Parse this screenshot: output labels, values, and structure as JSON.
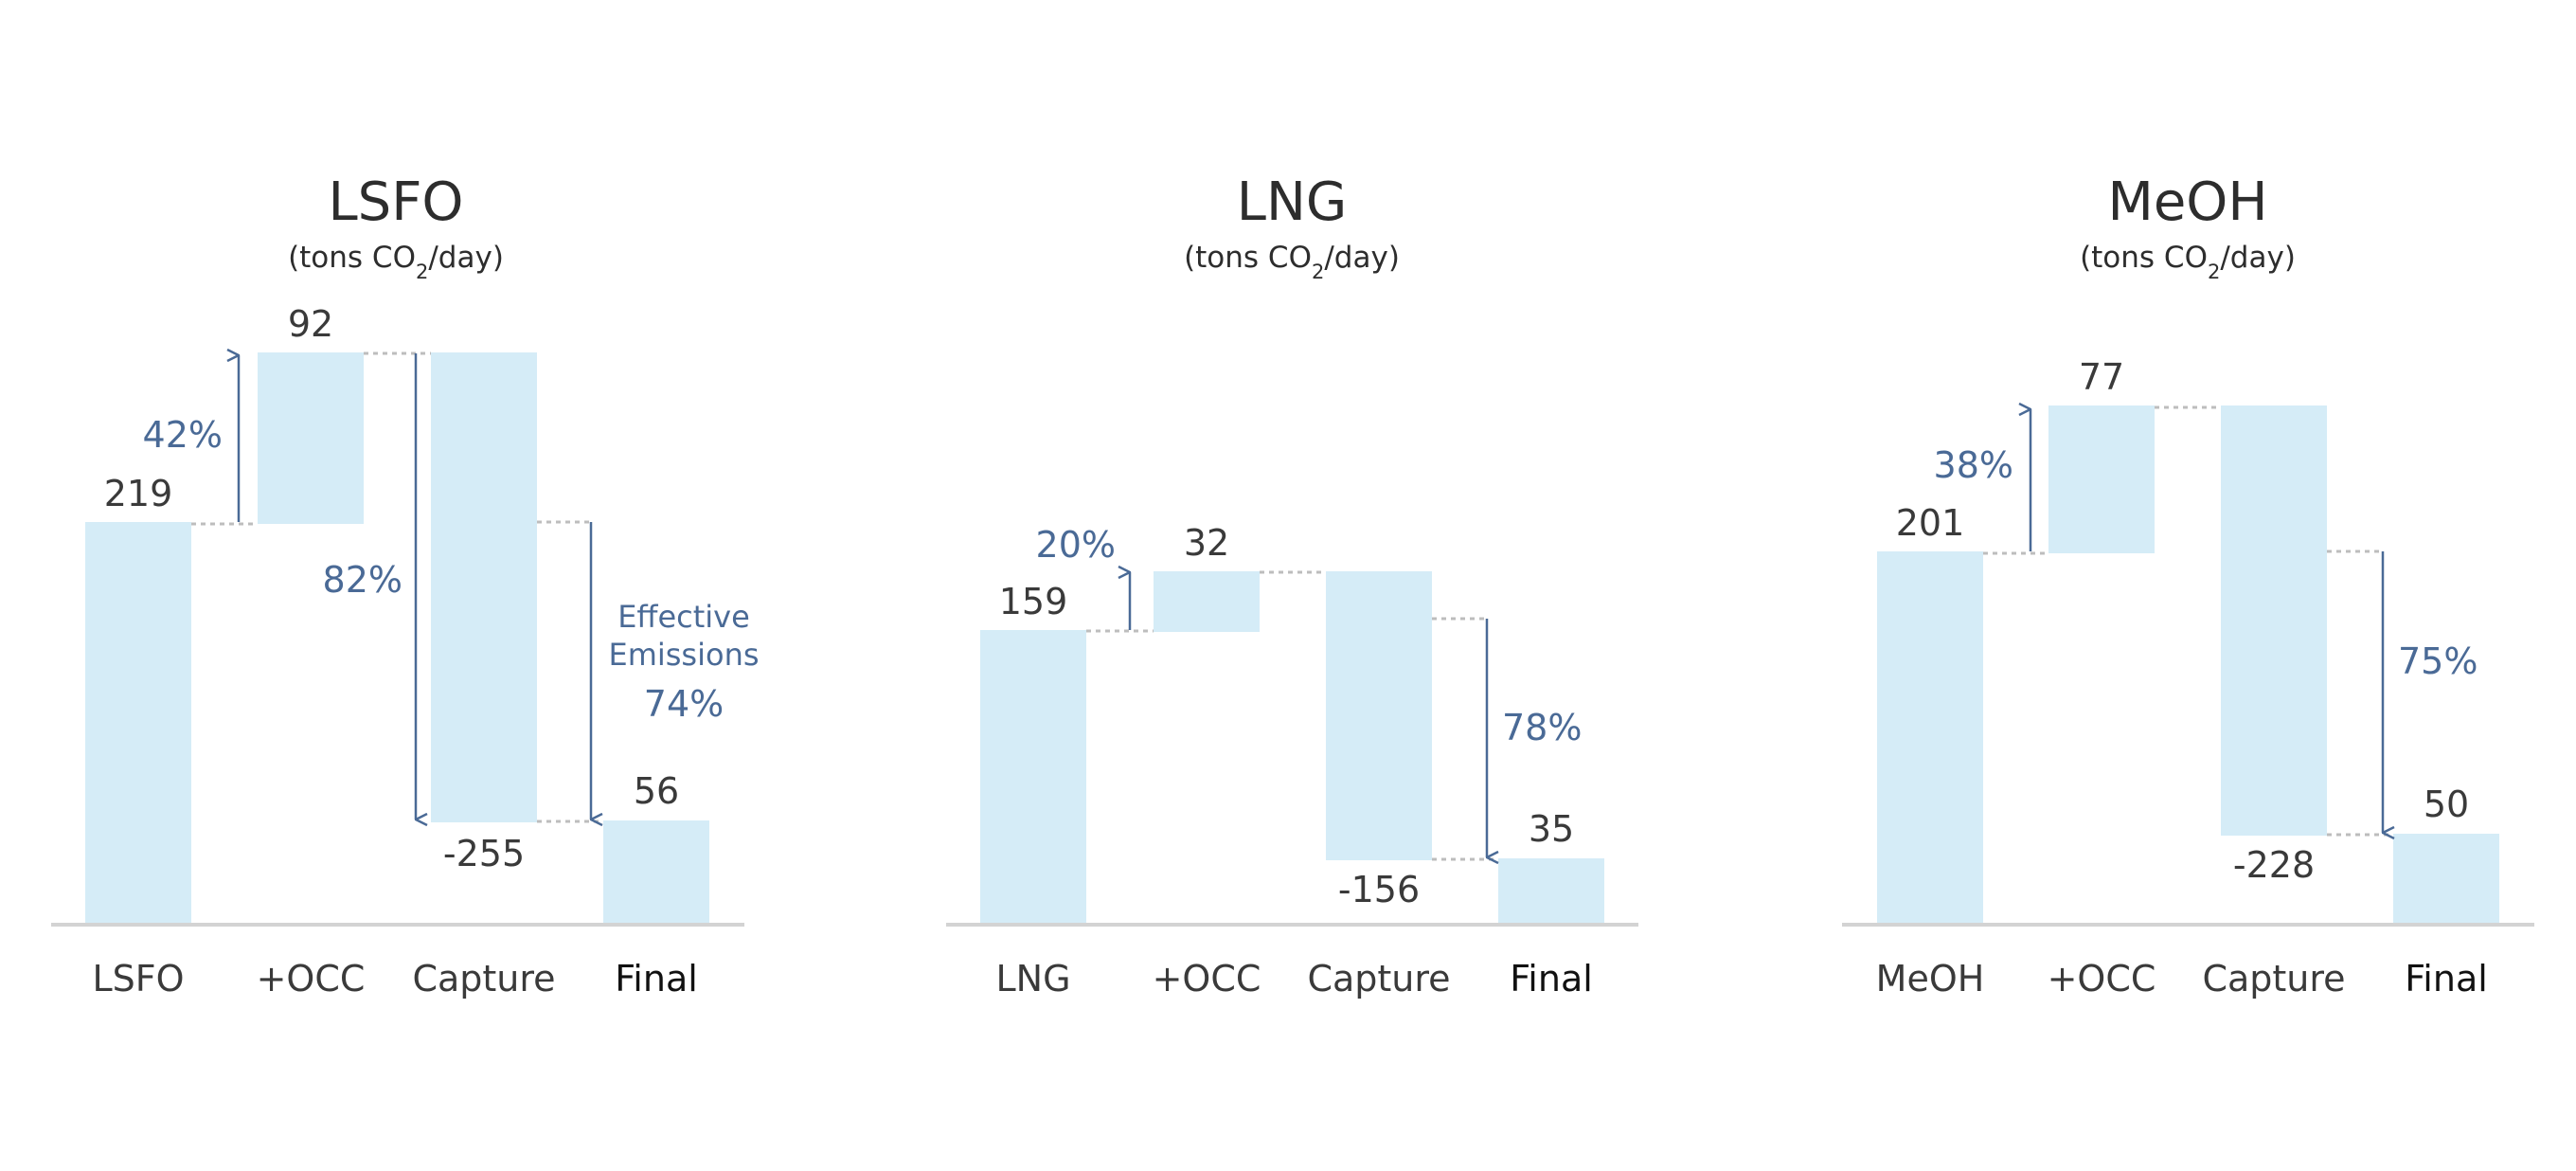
{
  "chart_data": [
    {
      "type": "waterfall",
      "title": "LSFO",
      "unit": {
        "prefix": "(tons CO",
        "sub": "2",
        "suffix": "/day)"
      },
      "categories": [
        "LSFO",
        "+OCC",
        "Capture",
        "Final"
      ],
      "values": [
        219,
        92,
        -255,
        56
      ],
      "value_labels": [
        "219",
        "92",
        "-255",
        "56"
      ],
      "annotations": [
        {
          "text": "42%",
          "from_step": 0,
          "to_step": 1
        },
        {
          "text": "82%",
          "from_step": 1,
          "to_step": 2
        },
        {
          "text": "74%",
          "note": [
            "Effective",
            "Emissions"
          ],
          "from_step": 0,
          "to_step": 2
        }
      ]
    },
    {
      "type": "waterfall",
      "title": "LNG",
      "unit": {
        "prefix": "(tons CO",
        "sub": "2",
        "suffix": "/day)"
      },
      "categories": [
        "LNG",
        "+OCC",
        "Capture",
        "Final"
      ],
      "values": [
        159,
        32,
        -156,
        35
      ],
      "value_labels": [
        "159",
        "32",
        "-156",
        "35"
      ],
      "annotations": [
        {
          "text": "20%",
          "from_step": 0,
          "to_step": 1
        },
        {
          "text": "78%",
          "from_step": 0,
          "to_step": 2
        }
      ]
    },
    {
      "type": "waterfall",
      "title": "MeOH",
      "unit": {
        "prefix": "(tons CO",
        "sub": "2",
        "suffix": "/day)"
      },
      "categories": [
        "MeOH",
        "+OCC",
        "Capture",
        "Final"
      ],
      "values": [
        201,
        77,
        -228,
        50
      ],
      "value_labels": [
        "201",
        "77",
        "-228",
        "50"
      ],
      "annotations": [
        {
          "text": "38%",
          "from_step": 0,
          "to_step": 1
        },
        {
          "text": "75%",
          "from_step": 0,
          "to_step": 2
        }
      ]
    }
  ],
  "colors": {
    "bar": "#d5ecf7",
    "annotation": "#4a6a96",
    "baseline": "#d3d3d3",
    "connector": "#bdbdbd",
    "text": "#2d2d2d"
  }
}
